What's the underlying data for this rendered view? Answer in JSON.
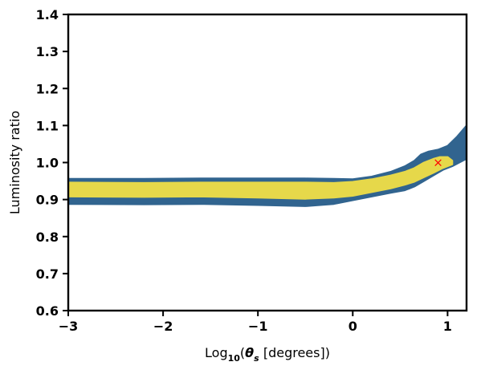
{
  "chart_data": {
    "type": "contour",
    "xlabel": {
      "prefix": "Log",
      "subscript": "10",
      "open": "(",
      "symbol": "θ",
      "symbol_sub": "s",
      "rest": " [degrees])"
    },
    "ylabel": "Luminosity ratio",
    "xlim": [
      -3,
      1.2
    ],
    "ylim": [
      0.6,
      1.4
    ],
    "xticks": [
      -3,
      -2,
      -1,
      0,
      1
    ],
    "xtick_labels": [
      "−3",
      "−2",
      "−1",
      "0",
      "1"
    ],
    "yticks": [
      0.6,
      0.7,
      0.8,
      0.9,
      1.0,
      1.1,
      1.2,
      1.3,
      1.4
    ],
    "ytick_labels": [
      "0.6",
      "0.7",
      "0.8",
      "0.9",
      "1.0",
      "1.1",
      "1.2",
      "1.3",
      "1.4"
    ],
    "grid": false,
    "regions": [
      {
        "level": "outer",
        "color": "#31648f",
        "upper": [
          [
            -3.0,
            0.956
          ],
          [
            -2.2,
            0.956
          ],
          [
            -1.6,
            0.957
          ],
          [
            -1.0,
            0.957
          ],
          [
            -0.5,
            0.957
          ],
          [
            -0.2,
            0.956
          ],
          [
            0.0,
            0.955
          ],
          [
            0.2,
            0.962
          ],
          [
            0.4,
            0.975
          ],
          [
            0.55,
            0.99
          ],
          [
            0.65,
            1.005
          ],
          [
            0.72,
            1.022
          ],
          [
            0.8,
            1.03
          ],
          [
            0.9,
            1.035
          ],
          [
            1.0,
            1.045
          ],
          [
            1.1,
            1.07
          ],
          [
            1.2,
            1.1
          ]
        ],
        "lower": [
          [
            -3.0,
            0.888
          ],
          [
            -2.2,
            0.887
          ],
          [
            -1.6,
            0.888
          ],
          [
            -1.0,
            0.885
          ],
          [
            -0.5,
            0.882
          ],
          [
            -0.2,
            0.888
          ],
          [
            0.0,
            0.898
          ],
          [
            0.2,
            0.908
          ],
          [
            0.4,
            0.918
          ],
          [
            0.55,
            0.925
          ],
          [
            0.65,
            0.935
          ],
          [
            0.75,
            0.95
          ],
          [
            0.85,
            0.965
          ],
          [
            0.95,
            0.98
          ],
          [
            1.05,
            0.99
          ],
          [
            1.2,
            1.01
          ]
        ]
      },
      {
        "level": "inner",
        "color": "#e6d84a",
        "upper": [
          [
            -3.0,
            0.946
          ],
          [
            -2.2,
            0.945
          ],
          [
            -1.6,
            0.946
          ],
          [
            -1.0,
            0.946
          ],
          [
            -0.5,
            0.946
          ],
          [
            -0.2,
            0.945
          ],
          [
            0.0,
            0.948
          ],
          [
            0.2,
            0.955
          ],
          [
            0.4,
            0.965
          ],
          [
            0.55,
            0.975
          ],
          [
            0.65,
            0.985
          ],
          [
            0.75,
            1.0
          ],
          [
            0.85,
            1.01
          ],
          [
            0.92,
            1.015
          ],
          [
            1.0,
            1.015
          ],
          [
            1.05,
            1.005
          ]
        ],
        "lower": [
          [
            -3.0,
            0.908
          ],
          [
            -2.2,
            0.907
          ],
          [
            -1.6,
            0.908
          ],
          [
            -1.0,
            0.905
          ],
          [
            -0.5,
            0.902
          ],
          [
            -0.2,
            0.905
          ],
          [
            0.0,
            0.91
          ],
          [
            0.2,
            0.92
          ],
          [
            0.4,
            0.93
          ],
          [
            0.55,
            0.94
          ],
          [
            0.65,
            0.948
          ],
          [
            0.75,
            0.96
          ],
          [
            0.85,
            0.972
          ],
          [
            0.95,
            0.985
          ],
          [
            1.05,
            0.995
          ]
        ]
      }
    ],
    "marker": {
      "x": 0.9,
      "y": 1.0,
      "symbol": "×",
      "color": "#ff0000"
    }
  }
}
